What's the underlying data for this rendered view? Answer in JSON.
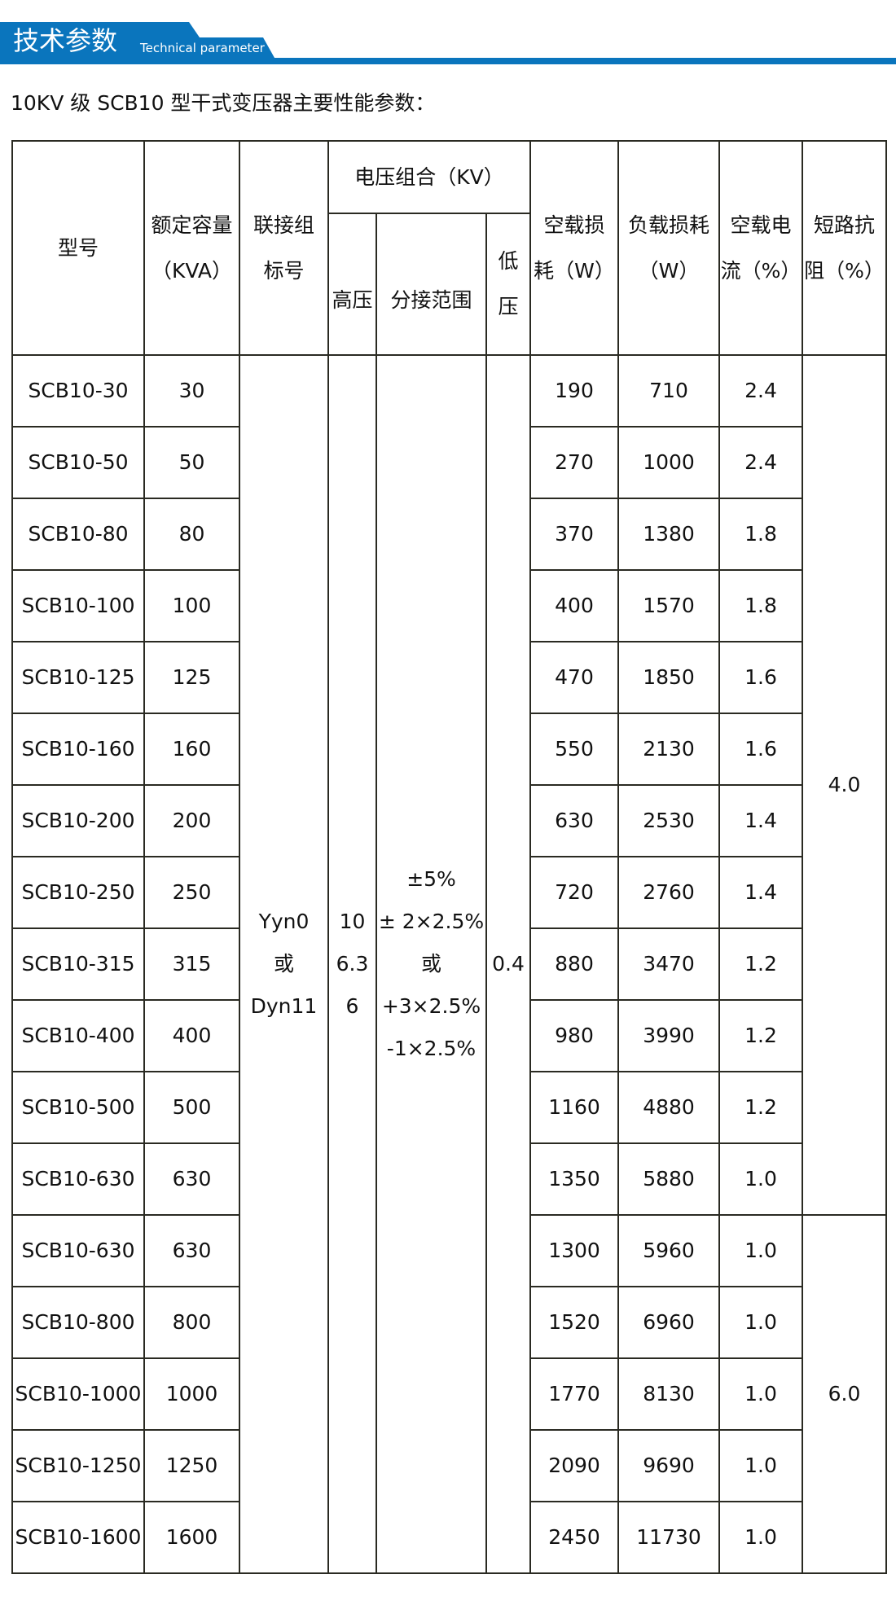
{
  "banner": {
    "title": "技术参数",
    "subtitle": "Technical parameter",
    "color": "#0a75bd"
  },
  "heading": "10KV 级 SCB10 型干式变压器主要性能参数：",
  "table": {
    "headers": {
      "model": "型号",
      "capacity": [
        "额定容量",
        "（KVA）"
      ],
      "connection": [
        "联接组",
        "标号"
      ],
      "voltage_group": "电压组合（KV）",
      "high_voltage": "高压",
      "tap_range": "分接范围",
      "low_voltage": [
        "低",
        "压"
      ],
      "no_load_loss": [
        "空载损",
        "耗（W）"
      ],
      "load_loss": [
        "负载损耗",
        "（W）"
      ],
      "no_load_current": [
        "空载电",
        "流（%）"
      ],
      "impedance": [
        "短路抗",
        "阻（%）"
      ]
    },
    "connection_value": [
      "Yyn0",
      "或",
      "Dyn11"
    ],
    "high_voltage_value": [
      "10",
      "6.3",
      "6"
    ],
    "tap_range_value": [
      "±5%",
      "± 2×2.5%",
      "或",
      "+3×2.5%",
      "-1×2.5%"
    ],
    "low_voltage_value": "0.4",
    "impedance_values": [
      "4.0",
      "6.0"
    ],
    "rows": [
      {
        "model": "SCB10-30",
        "kva": "30",
        "nll": "190",
        "ll": "710",
        "nlc": "2.4"
      },
      {
        "model": "SCB10-50",
        "kva": "50",
        "nll": "270",
        "ll": "1000",
        "nlc": "2.4"
      },
      {
        "model": "SCB10-80",
        "kva": "80",
        "nll": "370",
        "ll": "1380",
        "nlc": "1.8"
      },
      {
        "model": "SCB10-100",
        "kva": "100",
        "nll": "400",
        "ll": "1570",
        "nlc": "1.8"
      },
      {
        "model": "SCB10-125",
        "kva": "125",
        "nll": "470",
        "ll": "1850",
        "nlc": "1.6"
      },
      {
        "model": "SCB10-160",
        "kva": "160",
        "nll": "550",
        "ll": "2130",
        "nlc": "1.6"
      },
      {
        "model": "SCB10-200",
        "kva": "200",
        "nll": "630",
        "ll": "2530",
        "nlc": "1.4"
      },
      {
        "model": "SCB10-250",
        "kva": "250",
        "nll": "720",
        "ll": "2760",
        "nlc": "1.4"
      },
      {
        "model": "SCB10-315",
        "kva": "315",
        "nll": "880",
        "ll": "3470",
        "nlc": "1.2"
      },
      {
        "model": "SCB10-400",
        "kva": "400",
        "nll": "980",
        "ll": "3990",
        "nlc": "1.2"
      },
      {
        "model": "SCB10-500",
        "kva": "500",
        "nll": "1160",
        "ll": "4880",
        "nlc": "1.2"
      },
      {
        "model": "SCB10-630",
        "kva": "630",
        "nll": "1350",
        "ll": "5880",
        "nlc": "1.0"
      },
      {
        "model": "SCB10-630",
        "kva": "630",
        "nll": "1300",
        "ll": "5960",
        "nlc": "1.0"
      },
      {
        "model": "SCB10-800",
        "kva": "800",
        "nll": "1520",
        "ll": "6960",
        "nlc": "1.0"
      },
      {
        "model": "SCB10-1000",
        "kva": "1000",
        "nll": "1770",
        "ll": "8130",
        "nlc": "1.0"
      },
      {
        "model": "SCB10-1250",
        "kva": "1250",
        "nll": "2090",
        "ll": "9690",
        "nlc": "1.0"
      },
      {
        "model": "SCB10-1600",
        "kva": "1600",
        "nll": "2450",
        "ll": "11730",
        "nlc": "1.0"
      }
    ]
  }
}
